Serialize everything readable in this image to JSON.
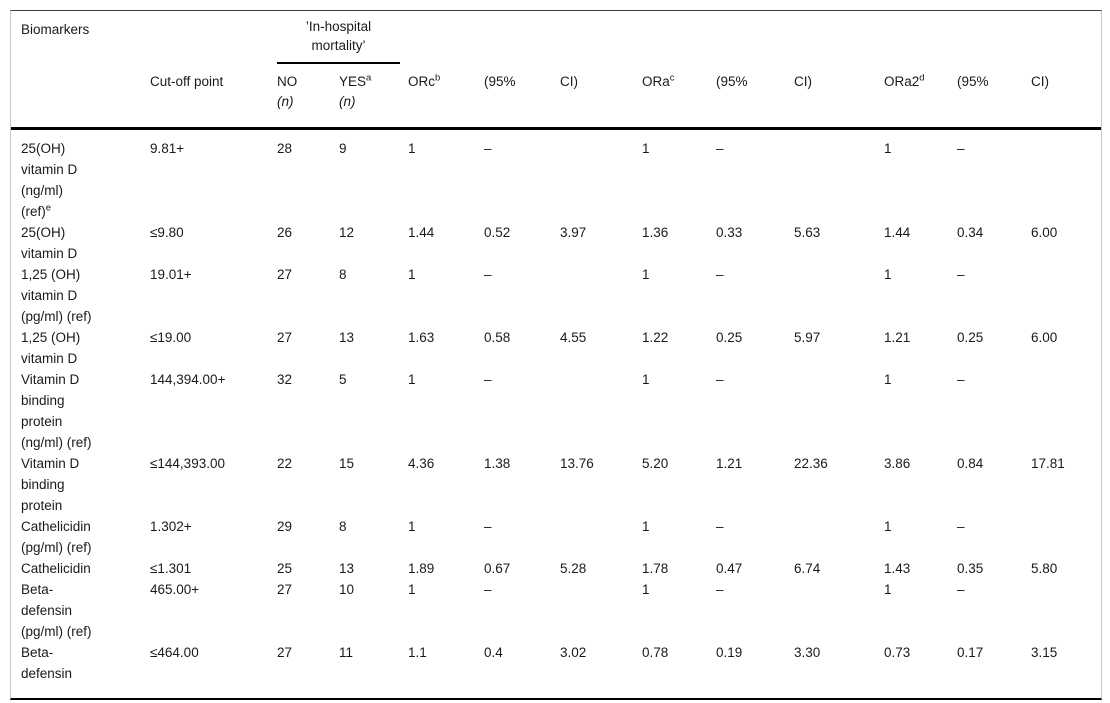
{
  "table": {
    "header": {
      "biomarkers": "Biomarkers",
      "cutoff": "Cut-off point",
      "mortality": "’In-hospital\nmortality’",
      "no": {
        "label": "NO",
        "n": "(n)"
      },
      "yes": {
        "label": "YES",
        "sup": "a",
        "n": "(n)"
      },
      "orc": {
        "label": "ORc",
        "sup": "b"
      },
      "ora": {
        "label": "ORa",
        "sup": "c"
      },
      "ora2": {
        "label": "ORa2",
        "sup": "d"
      },
      "ci_open": "(95%",
      "ci_close": "CI)"
    },
    "rows": [
      {
        "biomarker": "25(OH)\nvitamin D\n(ng/ml)\n(ref)",
        "sup": "e",
        "values": [
          "9.81+",
          "28",
          "9",
          "1",
          "–",
          "",
          "1",
          "–",
          "",
          "1",
          "–",
          ""
        ]
      },
      {
        "biomarker": "25(OH)\nvitamin D",
        "sup": "",
        "values": [
          "≤9.80",
          "26",
          "12",
          "1.44",
          "0.52",
          "3.97",
          "1.36",
          "0.33",
          "5.63",
          "1.44",
          "0.34",
          "6.00"
        ]
      },
      {
        "biomarker": "1,25 (OH)\nvitamin D\n(pg/ml) (ref)",
        "sup": "",
        "values": [
          "19.01+",
          "27",
          "8",
          "1",
          "–",
          "",
          "1",
          "–",
          "",
          "1",
          "–",
          ""
        ]
      },
      {
        "biomarker": "1,25 (OH)\nvitamin D",
        "sup": "",
        "values": [
          "≤19.00",
          "27",
          "13",
          "1.63",
          "0.58",
          "4.55",
          "1.22",
          "0.25",
          "5.97",
          "1.21",
          "0.25",
          "6.00"
        ]
      },
      {
        "biomarker": "Vitamin D\nbinding\nprotein\n(ng/ml) (ref)",
        "sup": "",
        "values": [
          "144,394.00+",
          "32",
          "5",
          "1",
          "–",
          "",
          "1",
          "–",
          "",
          "1",
          "–",
          ""
        ]
      },
      {
        "biomarker": "Vitamin D\nbinding\nprotein",
        "sup": "",
        "values": [
          "≤144,393.00",
          "22",
          "15",
          "4.36",
          "1.38",
          "13.76",
          "5.20",
          "1.21",
          "22.36",
          "3.86",
          "0.84",
          "17.81"
        ]
      },
      {
        "biomarker": "Cathelicidin\n(pg/ml) (ref)",
        "sup": "",
        "values": [
          "1.302+",
          "29",
          "8",
          "1",
          "–",
          "",
          "1",
          "–",
          "",
          "1",
          "–",
          ""
        ]
      },
      {
        "biomarker": "Cathelicidin",
        "sup": "",
        "values": [
          "≤1.301",
          "25",
          "13",
          "1.89",
          "0.67",
          "5.28",
          "1.78",
          "0.47",
          "6.74",
          "1.43",
          "0.35",
          "5.80"
        ]
      },
      {
        "biomarker": "Beta-\ndefensin\n(pg/ml) (ref)",
        "sup": "",
        "values": [
          "465.00+",
          "27",
          "10",
          "1",
          "–",
          "",
          "1",
          "–",
          "",
          "1",
          "–",
          ""
        ]
      },
      {
        "biomarker": "Beta-\ndefensin",
        "sup": "",
        "values": [
          "≤464.00",
          "27",
          "11",
          "1.1",
          "0.4",
          "3.02",
          "0.78",
          "0.19",
          "3.30",
          "0.73",
          "0.17",
          "3.15"
        ]
      }
    ]
  }
}
